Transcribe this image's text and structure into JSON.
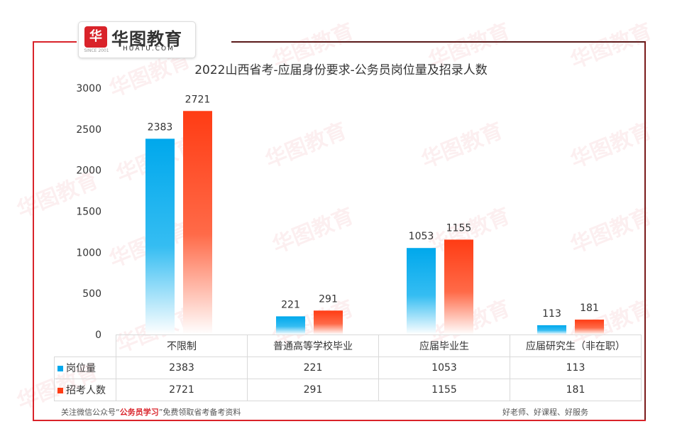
{
  "logo": {
    "cn": "华图教育",
    "en": "HUATU.COM",
    "since": "SINCE 2001",
    "mark": "华"
  },
  "watermark_text": "华图教育",
  "chart_data": {
    "type": "bar",
    "title": "2022山西省考-应届身份要求-公务员岗位量及招录人数",
    "categories": [
      "不限制",
      "普通高等学校毕业",
      "应届毕业生",
      "应届研究生（非在职）"
    ],
    "series": [
      {
        "name": "岗位量",
        "values": [
          2383,
          221,
          1053,
          113
        ],
        "color": "#00a8ec"
      },
      {
        "name": "招考人数",
        "values": [
          2721,
          291,
          1155,
          181
        ],
        "color": "#ff3c14"
      }
    ],
    "ylim": [
      0,
      3000
    ],
    "yticks": [
      0,
      500,
      1000,
      1500,
      2000,
      2500,
      3000
    ],
    "grid": false,
    "legend": "data-table-left"
  },
  "footer": {
    "left_prefix": "关注微信公众号“",
    "left_highlight": "公务员学习",
    "left_suffix": "”免费领取省考备考资料",
    "right": "好老师、好课程、好服务"
  }
}
